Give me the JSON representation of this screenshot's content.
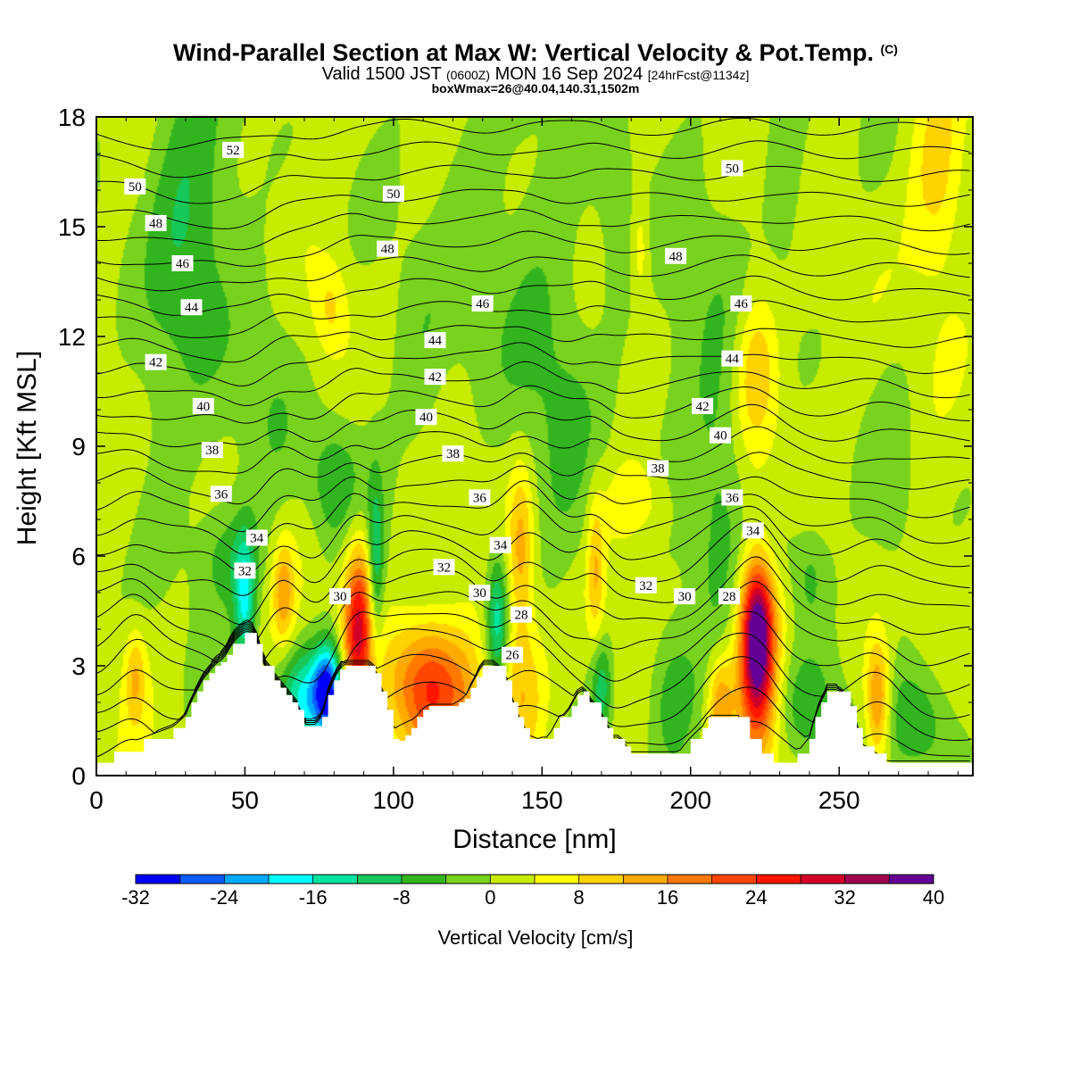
{
  "header": {
    "title": "Wind-Parallel Section at Max W: Vertical Velocity & Pot.Temp.",
    "copyright": "(C)",
    "valid_main": "Valid 1500 JST",
    "valid_utc": "(0600Z)",
    "valid_date": "MON 16 Sep 2024",
    "forecast": "[24hrFcst@1134z]",
    "box_max": "boxWmax=26@40.04,140.31,1502m"
  },
  "chart_data": {
    "type": "heatmap",
    "xlabel": "Distance [nm]",
    "ylabel": "Height [Kft MSL]",
    "xlim": [
      0,
      295
    ],
    "ylim": [
      0,
      18
    ],
    "x_ticks": [
      "0",
      "50",
      "100",
      "150",
      "200",
      "250"
    ],
    "y_ticks": [
      "0",
      "3",
      "6",
      "9",
      "12",
      "15",
      "18"
    ],
    "colorbar": {
      "title": "Vertical Velocity [cm/s]",
      "tick_labels": [
        "-32",
        "-24",
        "-16",
        "-8",
        "0",
        "8",
        "16",
        "24",
        "32",
        "40"
      ],
      "levels": [
        -32,
        -28,
        -24,
        -20,
        -16,
        -12,
        -8,
        -4,
        0,
        4,
        8,
        12,
        16,
        20,
        24,
        28,
        32,
        36,
        40
      ],
      "colors": [
        "#0000ff",
        "#0a5cff",
        "#00aaff",
        "#00ffff",
        "#00e4a0",
        "#16c85a",
        "#32b41e",
        "#78d21e",
        "#c8ec00",
        "#ffff00",
        "#ffd200",
        "#ffaa00",
        "#ff7800",
        "#ff4600",
        "#ff1400",
        "#d20028",
        "#a00050",
        "#640096"
      ]
    },
    "terrain": {
      "x": [
        0,
        6,
        16,
        26,
        30,
        32,
        34,
        36,
        38,
        40,
        42,
        44,
        46,
        50,
        52,
        54,
        56,
        60,
        62,
        64,
        66,
        68,
        70,
        74,
        76,
        78,
        80,
        82,
        84,
        86,
        88,
        92,
        94,
        96,
        98,
        100,
        102,
        104,
        106,
        108,
        110,
        112,
        114,
        120,
        122,
        124,
        126,
        128,
        130,
        134,
        138,
        140,
        142,
        144,
        146,
        148,
        150,
        152,
        154,
        156,
        158,
        160,
        162,
        164,
        166,
        170,
        172,
        174,
        176,
        178,
        180,
        184,
        188,
        192,
        196,
        200,
        204,
        206,
        208,
        212,
        216,
        220,
        224,
        228,
        232,
        236,
        240,
        242,
        244,
        246,
        250,
        254,
        256,
        258,
        262,
        266,
        270,
        276,
        280,
        285,
        290,
        295
      ],
      "y": [
        0.35,
        0.65,
        1.0,
        1.3,
        1.6,
        2.0,
        2.3,
        2.6,
        2.8,
        3.0,
        3.1,
        3.3,
        3.6,
        3.9,
        3.9,
        3.6,
        3.0,
        2.6,
        2.4,
        2.2,
        2.0,
        1.8,
        1.35,
        1.35,
        1.6,
        2.2,
        2.6,
        2.9,
        3.0,
        3.0,
        3.0,
        3.0,
        2.8,
        2.3,
        1.8,
        1.0,
        0.95,
        1.1,
        1.3,
        1.6,
        1.8,
        1.9,
        1.9,
        1.9,
        2.0,
        2.1,
        2.4,
        2.7,
        3.0,
        3.0,
        2.6,
        2.0,
        1.6,
        1.3,
        1.0,
        1.0,
        1.0,
        1.0,
        1.3,
        1.6,
        1.6,
        1.9,
        2.2,
        2.3,
        2.0,
        1.6,
        1.3,
        1.0,
        1.0,
        0.8,
        0.6,
        0.6,
        0.6,
        0.6,
        0.6,
        1.0,
        1.3,
        1.6,
        1.6,
        1.6,
        1.6,
        1.0,
        0.6,
        0.35,
        0.35,
        0.6,
        1.0,
        1.6,
        2.0,
        2.3,
        2.3,
        1.9,
        1.3,
        0.8,
        0.6,
        0.35,
        0.35,
        0.35,
        0.35,
        0.35,
        0.35,
        0.35
      ]
    },
    "features": [
      {
        "x": 222.5,
        "z": 3.6,
        "sx": 4.5,
        "sz": 1.9,
        "w": 36
      },
      {
        "x": 222.5,
        "z": 3.8,
        "sx": 2.5,
        "sz": 1.0,
        "w": 10
      },
      {
        "x": 89,
        "z": 4.4,
        "sx": 4.0,
        "sz": 1.6,
        "w": 20
      },
      {
        "x": 87,
        "z": 3.3,
        "sx": 3.0,
        "sz": 1.5,
        "w": 10
      },
      {
        "x": 63,
        "z": 5.0,
        "sx": 2.5,
        "sz": 1.0,
        "w": 12
      },
      {
        "x": 106,
        "z": 2.5,
        "sx": 8.0,
        "sz": 1.3,
        "w": 14
      },
      {
        "x": 115,
        "z": 2.3,
        "sx": 6.0,
        "sz": 1.2,
        "w": 12
      },
      {
        "x": 143,
        "z": 6.2,
        "sx": 3.0,
        "sz": 1.6,
        "w": 12
      },
      {
        "x": 143,
        "z": 2.2,
        "sx": 6.0,
        "sz": 1.5,
        "w": 12
      },
      {
        "x": 263,
        "z": 2.0,
        "sx": 3.0,
        "sz": 1.2,
        "w": 18
      },
      {
        "x": 210,
        "z": 1.9,
        "sx": 3.0,
        "sz": 1.0,
        "w": 14
      },
      {
        "x": 168,
        "z": 5.6,
        "sx": 2.0,
        "sz": 1.5,
        "w": 10
      },
      {
        "x": 13,
        "z": 2.7,
        "sx": 2.5,
        "sz": 0.9,
        "w": 10
      },
      {
        "x": 125,
        "z": 2.3,
        "sx": 5.0,
        "sz": 1.2,
        "w": 8
      },
      {
        "x": 222,
        "z": 11.0,
        "sx": 5.0,
        "sz": 1.4,
        "w": 9
      },
      {
        "x": 283,
        "z": 16.5,
        "sx": 6.0,
        "sz": 1.8,
        "w": 8
      },
      {
        "x": 79,
        "z": 12.8,
        "sx": 4.0,
        "sz": 0.9,
        "w": 7
      },
      {
        "x": 183,
        "z": 14.4,
        "sx": 2.0,
        "sz": 1.0,
        "w": 6
      },
      {
        "x": 182,
        "z": 7.5,
        "sx": 8.0,
        "sz": 0.8,
        "w": 6
      },
      {
        "x": 78,
        "z": 2.3,
        "sx": 3.5,
        "sz": 0.9,
        "w": -30
      },
      {
        "x": 70,
        "z": 2.1,
        "sx": 6.0,
        "sz": 1.0,
        "w": -18
      },
      {
        "x": 50,
        "z": 4.7,
        "sx": 2.5,
        "sz": 1.3,
        "w": -16
      },
      {
        "x": 94,
        "z": 5.6,
        "sx": 2.0,
        "sz": 1.6,
        "w": -16
      },
      {
        "x": 135,
        "z": 4.2,
        "sx": 2.5,
        "sz": 1.3,
        "w": -16
      },
      {
        "x": 170,
        "z": 2.4,
        "sx": 2.5,
        "sz": 1.0,
        "w": -12
      },
      {
        "x": 277,
        "z": 1.5,
        "sx": 8.0,
        "sz": 1.1,
        "w": -10
      },
      {
        "x": 240,
        "z": 1.8,
        "sx": 6.0,
        "sz": 1.0,
        "w": -8
      },
      {
        "x": 194,
        "z": 2.2,
        "sx": 6.0,
        "sz": 1.3,
        "w": -8
      },
      {
        "x": 30,
        "z": 15.5,
        "sx": 10.0,
        "sz": 3.0,
        "w": -10
      },
      {
        "x": 80,
        "z": 8.0,
        "sx": 6.0,
        "sz": 1.2,
        "w": -9
      },
      {
        "x": 45,
        "z": 6.0,
        "sx": 8.0,
        "sz": 1.0,
        "w": -7
      },
      {
        "x": 226,
        "z": 6.3,
        "sx": 7.0,
        "sz": 1.1,
        "w": -7
      },
      {
        "x": 240,
        "z": 5.5,
        "sx": 4.0,
        "sz": 1.0,
        "w": -6
      },
      {
        "x": 60,
        "z": 10.5,
        "sx": 8.0,
        "sz": 2.5,
        "w": -5
      },
      {
        "x": 160,
        "z": 9.0,
        "sx": 8.0,
        "sz": 3.0,
        "w": -5
      },
      {
        "x": 210,
        "z": 8.5,
        "sx": 6.0,
        "sz": 3.5,
        "w": -6
      },
      {
        "x": 232,
        "z": 16.5,
        "sx": 5.0,
        "sz": 2.5,
        "w": -6
      },
      {
        "x": 125,
        "z": 15.0,
        "sx": 8.0,
        "sz": 3.5,
        "w": -5
      },
      {
        "x": 175,
        "z": 15.5,
        "sx": 5.0,
        "sz": 3.0,
        "w": -5
      },
      {
        "x": 110,
        "z": 11.0,
        "sx": 6.0,
        "sz": 2.0,
        "w": -4
      },
      {
        "x": 145,
        "z": 13.0,
        "sx": 10.0,
        "sz": 3.0,
        "w": -4
      },
      {
        "x": 268,
        "z": 8.0,
        "sx": 6.0,
        "sz": 3.0,
        "w": -4
      },
      {
        "x": 20,
        "z": 9.0,
        "sx": 8.0,
        "sz": 3.0,
        "w": -4
      },
      {
        "x": 195,
        "z": 12.0,
        "sx": 8.0,
        "sz": 3.0,
        "w": -3
      },
      {
        "x": 260,
        "z": 12.0,
        "sx": 10.0,
        "sz": 3.0,
        "w": 2
      }
    ],
    "isentrope_levels": [
      26,
      27,
      28,
      29,
      30,
      31,
      32,
      33,
      34,
      35,
      36,
      37,
      38,
      39,
      40,
      41,
      42,
      43,
      44,
      45,
      46,
      47,
      48,
      49,
      50,
      51,
      52,
      53
    ],
    "isentrope_labels": [
      {
        "text": "52",
        "x": 46,
        "y": 17.1
      },
      {
        "text": "50",
        "x": 13,
        "y": 16.1
      },
      {
        "text": "48",
        "x": 20,
        "y": 15.1
      },
      {
        "text": "46",
        "x": 29,
        "y": 14.0
      },
      {
        "text": "44",
        "x": 32,
        "y": 12.8
      },
      {
        "text": "42",
        "x": 20,
        "y": 11.3
      },
      {
        "text": "40",
        "x": 36,
        "y": 10.1
      },
      {
        "text": "38",
        "x": 39,
        "y": 8.9
      },
      {
        "text": "36",
        "x": 42,
        "y": 7.7
      },
      {
        "text": "34",
        "x": 54,
        "y": 6.5
      },
      {
        "text": "32",
        "x": 50,
        "y": 5.6
      },
      {
        "text": "30",
        "x": 82,
        "y": 4.9
      },
      {
        "text": "50",
        "x": 100,
        "y": 15.9
      },
      {
        "text": "48",
        "x": 98,
        "y": 14.4
      },
      {
        "text": "46",
        "x": 130,
        "y": 12.9
      },
      {
        "text": "44",
        "x": 114,
        "y": 11.9
      },
      {
        "text": "42",
        "x": 114,
        "y": 10.9
      },
      {
        "text": "40",
        "x": 111,
        "y": 9.8
      },
      {
        "text": "38",
        "x": 120,
        "y": 8.8
      },
      {
        "text": "36",
        "x": 129,
        "y": 7.6
      },
      {
        "text": "34",
        "x": 136,
        "y": 6.3
      },
      {
        "text": "32",
        "x": 117,
        "y": 5.7
      },
      {
        "text": "30",
        "x": 129,
        "y": 5.0
      },
      {
        "text": "28",
        "x": 143,
        "y": 4.4
      },
      {
        "text": "26",
        "x": 140,
        "y": 3.3
      },
      {
        "text": "50",
        "x": 214,
        "y": 16.6
      },
      {
        "text": "48",
        "x": 195,
        "y": 14.2
      },
      {
        "text": "46",
        "x": 217,
        "y": 12.9
      },
      {
        "text": "44",
        "x": 214,
        "y": 11.4
      },
      {
        "text": "42",
        "x": 204,
        "y": 10.1
      },
      {
        "text": "40",
        "x": 210,
        "y": 9.3
      },
      {
        "text": "38",
        "x": 189,
        "y": 8.4
      },
      {
        "text": "36",
        "x": 214,
        "y": 7.6
      },
      {
        "text": "34",
        "x": 221,
        "y": 6.7
      },
      {
        "text": "32",
        "x": 185,
        "y": 5.2
      },
      {
        "text": "30",
        "x": 198,
        "y": 4.9
      },
      {
        "text": "28",
        "x": 213,
        "y": 4.9
      }
    ]
  }
}
